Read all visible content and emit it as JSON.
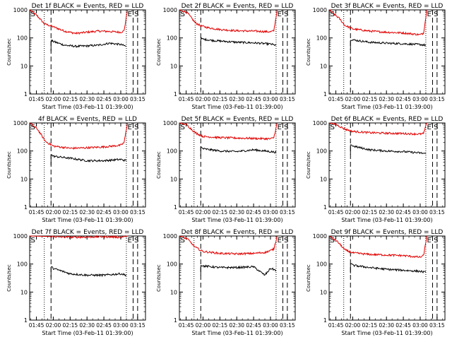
{
  "figure": {
    "colors": {
      "events": "#000000",
      "lld": "#e00000",
      "axes": "#000000",
      "background": "#ffffff"
    }
  },
  "chart_data": [
    {
      "type": "line",
      "title": "Det 1f BLACK = Events, RED = LLD",
      "xlabel": "Start Time (03-Feb-11 01:39:00)",
      "ylabel": "Counts/sec",
      "xlim": [
        "01:39",
        "03:22"
      ],
      "ylim": [
        1,
        1000
      ],
      "yscale": "log",
      "x_ticks": [
        "01:45",
        "02:00",
        "02:15",
        "02:30",
        "02:45",
        "03:00",
        "03:15"
      ],
      "y_ticks": [
        "1",
        "10",
        "100",
        "1000"
      ],
      "annotations": [
        {
          "text": "S",
          "at": "01:40"
        },
        {
          "text": "E",
          "at": "03:06"
        },
        {
          "text": "S",
          "at": "03:12"
        }
      ],
      "dotted_lines": [
        "01:52",
        "03:05"
      ],
      "dashed_lines": [
        "01:58",
        "03:11",
        "03:15"
      ],
      "series": [
        {
          "name": "LLD",
          "x": [
            "01:39",
            "01:46",
            "01:52",
            "02:00",
            "02:10",
            "02:20",
            "02:30",
            "02:40",
            "02:50",
            "03:00",
            "03:03",
            "03:06"
          ],
          "y": [
            1000,
            600,
            320,
            250,
            175,
            145,
            160,
            175,
            170,
            160,
            180,
            1000
          ]
        },
        {
          "name": "Events",
          "x": [
            "01:58",
            "02:00",
            "02:10",
            "02:20",
            "02:30",
            "02:40",
            "02:50",
            "03:00",
            "03:05"
          ],
          "y": [
            80,
            75,
            55,
            50,
            52,
            55,
            65,
            58,
            50
          ]
        }
      ]
    },
    {
      "type": "line",
      "title": "Det 2f BLACK = Events, RED = LLD",
      "xlabel": "Start Time (03-Feb-11 01:39:00)",
      "ylabel": "Counts/sec",
      "xlim": [
        "01:39",
        "03:22"
      ],
      "ylim": [
        1,
        1000
      ],
      "yscale": "log",
      "x_ticks": [
        "01:45",
        "02:00",
        "02:15",
        "02:30",
        "02:45",
        "03:00",
        "03:15"
      ],
      "y_ticks": [
        "1",
        "10",
        "100",
        "1000"
      ],
      "annotations": [
        {
          "text": "S",
          "at": "01:40"
        },
        {
          "text": "E",
          "at": "03:06"
        },
        {
          "text": "S",
          "at": "03:12"
        }
      ],
      "dotted_lines": [
        "01:53",
        "03:05"
      ],
      "dashed_lines": [
        "01:58",
        "03:11",
        "03:15"
      ],
      "series": [
        {
          "name": "LLD",
          "x": [
            "01:39",
            "01:46",
            "01:53",
            "01:58",
            "02:05",
            "02:15",
            "02:30",
            "02:45",
            "03:00",
            "03:03",
            "03:06"
          ],
          "y": [
            1000,
            800,
            350,
            270,
            230,
            200,
            180,
            175,
            165,
            180,
            1000
          ]
        },
        {
          "name": "Events",
          "x": [
            "01:58",
            "02:00",
            "02:10",
            "02:20",
            "02:30",
            "02:40",
            "02:50",
            "03:00",
            "03:05"
          ],
          "y": [
            95,
            90,
            80,
            75,
            70,
            68,
            65,
            60,
            55
          ]
        }
      ]
    },
    {
      "type": "line",
      "title": "Det 3f BLACK = Events, RED = LLD",
      "xlabel": "Start Time (03-Feb-11 01:39:00)",
      "ylabel": "Counts/sec",
      "xlim": [
        "01:39",
        "03:22"
      ],
      "ylim": [
        1,
        1000
      ],
      "yscale": "log",
      "x_ticks": [
        "01:45",
        "02:00",
        "02:15",
        "02:30",
        "02:45",
        "03:00",
        "03:15"
      ],
      "y_ticks": [
        "1",
        "10",
        "100",
        "1000"
      ],
      "annotations": [
        {
          "text": "S",
          "at": "01:40"
        },
        {
          "text": "E",
          "at": "03:06"
        },
        {
          "text": "S",
          "at": "03:12"
        }
      ],
      "dotted_lines": [
        "01:52",
        "03:05"
      ],
      "dashed_lines": [
        "01:58",
        "03:11",
        "03:15"
      ],
      "series": [
        {
          "name": "LLD",
          "x": [
            "01:39",
            "01:48",
            "01:53",
            "02:00",
            "02:15",
            "02:30",
            "02:45",
            "03:00",
            "03:03",
            "03:06"
          ],
          "y": [
            1000,
            500,
            280,
            210,
            175,
            160,
            150,
            130,
            150,
            1000
          ]
        },
        {
          "name": "Events",
          "x": [
            "01:58",
            "02:00",
            "02:15",
            "02:30",
            "02:45",
            "03:00",
            "03:05"
          ],
          "y": [
            90,
            85,
            70,
            65,
            62,
            58,
            55
          ]
        }
      ]
    },
    {
      "type": "line",
      "title": "4f BLACK = Events, RED = LLD",
      "xlabel": "Start Time (03-Feb-11 01:39:00)",
      "ylabel": "Counts/sec",
      "xlim": [
        "01:39",
        "03:22"
      ],
      "ylim": [
        1,
        1000
      ],
      "yscale": "log",
      "x_ticks": [
        "01:45",
        "02:00",
        "02:15",
        "02:30",
        "02:45",
        "03:00",
        "03:15"
      ],
      "y_ticks": [
        "1",
        "10",
        "100",
        "1000"
      ],
      "annotations": [
        {
          "text": "S",
          "at": "01:40"
        },
        {
          "text": "E",
          "at": "03:06"
        },
        {
          "text": "S",
          "at": "03:12"
        }
      ],
      "dotted_lines": [
        "01:52",
        "03:05"
      ],
      "dashed_lines": [
        "01:58",
        "03:11",
        "03:15"
      ],
      "series": [
        {
          "name": "LLD",
          "x": [
            "01:39",
            "01:46",
            "01:53",
            "02:00",
            "02:15",
            "02:30",
            "02:45",
            "03:00",
            "03:03",
            "03:06"
          ],
          "y": [
            1000,
            600,
            220,
            150,
            125,
            130,
            140,
            160,
            200,
            1000
          ]
        },
        {
          "name": "Events",
          "x": [
            "01:58",
            "02:00",
            "02:15",
            "02:30",
            "02:45",
            "03:00",
            "03:05"
          ],
          "y": [
            75,
            65,
            55,
            45,
            45,
            50,
            45
          ]
        }
      ]
    },
    {
      "type": "line",
      "title": "Det 5f BLACK = Events, RED = LLD",
      "xlabel": "Start Time (03-Feb-11 01:39:00)",
      "ylabel": "Counts/sec",
      "xlim": [
        "01:39",
        "03:22"
      ],
      "ylim": [
        1,
        1000
      ],
      "yscale": "log",
      "x_ticks": [
        "01:45",
        "02:00",
        "02:15",
        "02:30",
        "02:45",
        "03:00",
        "03:15"
      ],
      "y_ticks": [
        "1",
        "10",
        "100",
        "1000"
      ],
      "annotations": [
        {
          "text": "S",
          "at": "01:40"
        },
        {
          "text": "E",
          "at": "03:06"
        },
        {
          "text": "S",
          "at": "03:12"
        }
      ],
      "dotted_lines": [
        "01:52",
        "03:05"
      ],
      "dashed_lines": [
        "01:58",
        "03:11",
        "03:15"
      ],
      "series": [
        {
          "name": "LLD",
          "x": [
            "01:39",
            "01:45",
            "01:53",
            "02:00",
            "02:15",
            "02:30",
            "02:45",
            "03:00",
            "03:03",
            "03:06"
          ],
          "y": [
            1000,
            900,
            450,
            330,
            300,
            290,
            280,
            270,
            300,
            1000
          ]
        },
        {
          "name": "Events",
          "x": [
            "01:58",
            "02:00",
            "02:15",
            "02:30",
            "02:45",
            "03:00",
            "03:05"
          ],
          "y": [
            140,
            120,
            100,
            95,
            110,
            95,
            90
          ]
        }
      ]
    },
    {
      "type": "line",
      "title": "Det 6f BLACK = Events, RED = LLD",
      "xlabel": "Start Time (03-Feb-11 01:39:00)",
      "ylabel": "Counts/sec",
      "xlim": [
        "01:39",
        "03:22"
      ],
      "ylim": [
        1,
        1000
      ],
      "yscale": "log",
      "x_ticks": [
        "01:45",
        "02:00",
        "02:15",
        "02:30",
        "02:45",
        "03:00",
        "03:15"
      ],
      "y_ticks": [
        "1",
        "10",
        "100",
        "1000"
      ],
      "annotations": [
        {
          "text": "S",
          "at": "01:40"
        },
        {
          "text": "E",
          "at": "03:06"
        },
        {
          "text": "S",
          "at": "03:12"
        }
      ],
      "dotted_lines": [
        "01:53",
        "03:05"
      ],
      "dashed_lines": [
        "01:58",
        "03:11",
        "03:15"
      ],
      "series": [
        {
          "name": "LLD",
          "x": [
            "01:39",
            "01:45",
            "01:53",
            "02:00",
            "02:15",
            "02:30",
            "02:45",
            "03:00",
            "03:03",
            "03:06"
          ],
          "y": [
            1000,
            900,
            600,
            500,
            450,
            430,
            420,
            400,
            420,
            1000
          ]
        },
        {
          "name": "Events",
          "x": [
            "01:58",
            "02:00",
            "02:15",
            "02:30",
            "02:45",
            "03:00",
            "03:05"
          ],
          "y": [
            180,
            150,
            110,
            100,
            95,
            85,
            80
          ]
        }
      ]
    },
    {
      "type": "line",
      "title": "Det 7f BLACK = Events, RED = LLD",
      "xlabel": "Start Time (03-Feb-11 01:39:00)",
      "ylabel": "Counts/sec",
      "xlim": [
        "01:39",
        "03:22"
      ],
      "ylim": [
        1,
        1000
      ],
      "yscale": "log",
      "x_ticks": [
        "01:45",
        "02:00",
        "02:15",
        "02:30",
        "02:45",
        "03:00",
        "03:15"
      ],
      "y_ticks": [
        "1",
        "10",
        "100",
        "1000"
      ],
      "annotations": [
        {
          "text": "S",
          "at": "01:40"
        },
        {
          "text": "E",
          "at": "03:06"
        },
        {
          "text": "S",
          "at": "03:12"
        }
      ],
      "dotted_lines": [
        "01:52",
        "03:05"
      ],
      "dashed_lines": [
        "01:58",
        "03:11",
        "03:15"
      ],
      "series": [
        {
          "name": "LLD",
          "x": [
            "01:39",
            "02:00",
            "02:15",
            "02:30",
            "02:45",
            "03:00",
            "03:06"
          ],
          "y": [
            1000,
            950,
            900,
            920,
            950,
            900,
            1000
          ]
        },
        {
          "name": "Events",
          "x": [
            "01:58",
            "02:00",
            "02:15",
            "02:30",
            "02:45",
            "03:00",
            "03:05"
          ],
          "y": [
            80,
            70,
            45,
            40,
            40,
            45,
            40
          ]
        }
      ]
    },
    {
      "type": "line",
      "title": "Det 8f BLACK = Events, RED = LLD",
      "xlabel": "Start Time (03-Feb-11 01:39:00)",
      "ylabel": "Counts/sec",
      "xlim": [
        "01:39",
        "03:22"
      ],
      "ylim": [
        1,
        1000
      ],
      "yscale": "log",
      "x_ticks": [
        "01:45",
        "02:00",
        "02:15",
        "02:30",
        "02:45",
        "03:00",
        "03:15"
      ],
      "y_ticks": [
        "1",
        "10",
        "100",
        "1000"
      ],
      "annotations": [
        {
          "text": "S",
          "at": "01:40"
        },
        {
          "text": "E",
          "at": "03:06"
        },
        {
          "text": "S",
          "at": "03:12"
        }
      ],
      "dotted_lines": [
        "01:52",
        "03:05"
      ],
      "dashed_lines": [
        "01:58",
        "03:11",
        "03:15"
      ],
      "series": [
        {
          "name": "LLD",
          "x": [
            "01:39",
            "01:46",
            "01:53",
            "02:00",
            "02:15",
            "02:30",
            "02:45",
            "02:55",
            "03:00",
            "03:03",
            "03:06"
          ],
          "y": [
            1000,
            800,
            400,
            280,
            240,
            230,
            240,
            260,
            300,
            350,
            1000
          ]
        },
        {
          "name": "Events",
          "x": [
            "01:58",
            "02:00",
            "02:15",
            "02:30",
            "02:45",
            "02:55",
            "03:00",
            "03:05"
          ],
          "y": [
            95,
            85,
            75,
            75,
            80,
            40,
            70,
            60
          ]
        }
      ]
    },
    {
      "type": "line",
      "title": "Det 9f BLACK = Events, RED = LLD",
      "xlabel": "Start Time (03-Feb-11 01:39:00)",
      "ylabel": "Counts/sec",
      "xlim": [
        "01:39",
        "03:22"
      ],
      "ylim": [
        1,
        1000
      ],
      "yscale": "log",
      "x_ticks": [
        "01:45",
        "02:00",
        "02:15",
        "02:30",
        "02:45",
        "03:00",
        "03:15"
      ],
      "y_ticks": [
        "1",
        "10",
        "100",
        "1000"
      ],
      "annotations": [
        {
          "text": "S",
          "at": "01:40"
        },
        {
          "text": "E",
          "at": "03:06"
        },
        {
          "text": "S",
          "at": "03:12"
        }
      ],
      "dotted_lines": [
        "01:52",
        "03:05"
      ],
      "dashed_lines": [
        "01:58",
        "03:11",
        "03:15"
      ],
      "series": [
        {
          "name": "LLD",
          "x": [
            "01:39",
            "01:47",
            "01:53",
            "02:00",
            "02:15",
            "02:30",
            "02:45",
            "03:00",
            "03:03",
            "03:06"
          ],
          "y": [
            1000,
            600,
            320,
            250,
            220,
            210,
            200,
            175,
            200,
            1000
          ]
        },
        {
          "name": "Events",
          "x": [
            "01:58",
            "02:00",
            "02:15",
            "02:30",
            "02:45",
            "03:00",
            "03:05"
          ],
          "y": [
            110,
            90,
            75,
            65,
            60,
            55,
            50
          ]
        }
      ]
    }
  ]
}
